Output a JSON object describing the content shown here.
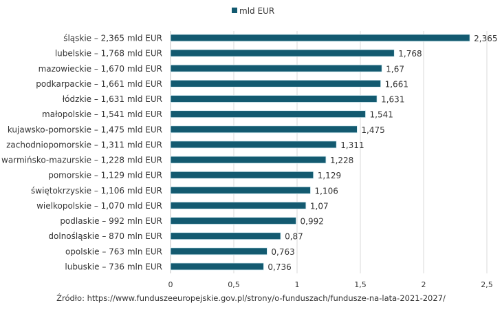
{
  "chart_data": {
    "type": "bar",
    "orientation": "horizontal",
    "categories": [
      "śląskie – 2,365 mld EUR",
      "lubelskie – 1,768 mld EUR",
      "mazowieckie – 1,670 mld EUR",
      "podkarpackie – 1,661 mld EUR",
      "łódzkie – 1,631 mld EUR",
      "małopolskie – 1,541 mld EUR",
      "kujawsko-pomorskie – 1,475 mld EUR",
      "zachodniopomorskie – 1,311 mld EUR",
      "warmińsko-mazurskie – 1,228 mld EUR",
      "pomorskie – 1,129 mld EUR",
      "świętokrzyskie – 1,106 mld EUR",
      "wielkopolskie – 1,070 mld EUR",
      "podlaskie –  992 mln EUR",
      "dolnośląskie –  870 mln EUR",
      "opolskie – 763 mln EUR",
      "lubuskie – 736 mln EUR"
    ],
    "series": [
      {
        "name": "mld EUR",
        "color": "#135a70",
        "values": [
          2.365,
          1.768,
          1.67,
          1.661,
          1.631,
          1.541,
          1.475,
          1.311,
          1.228,
          1.129,
          1.106,
          1.07,
          0.992,
          0.87,
          0.763,
          0.736
        ],
        "data_labels": [
          "2,365",
          "1,768",
          "1,67",
          "1,661",
          "1,631",
          "1,541",
          "1,475",
          "1,311",
          "1,228",
          "1,129",
          "1,106",
          "1,07",
          "0,992",
          "0,87",
          "0,763",
          "0,736"
        ]
      }
    ],
    "xlim": [
      0,
      2.5
    ],
    "x_ticks": [
      0,
      0.5,
      1,
      1.5,
      2,
      2.5
    ],
    "x_tick_labels": [
      "0",
      "0,5",
      "1",
      "1,5",
      "2",
      "2,5"
    ],
    "grid": "vertical",
    "legend_position": "top"
  },
  "source": "Źródło: https://www.funduszeeuropejskie.gov.pl/strony/o-funduszach/fundusze-na-lata-2021-2027/"
}
